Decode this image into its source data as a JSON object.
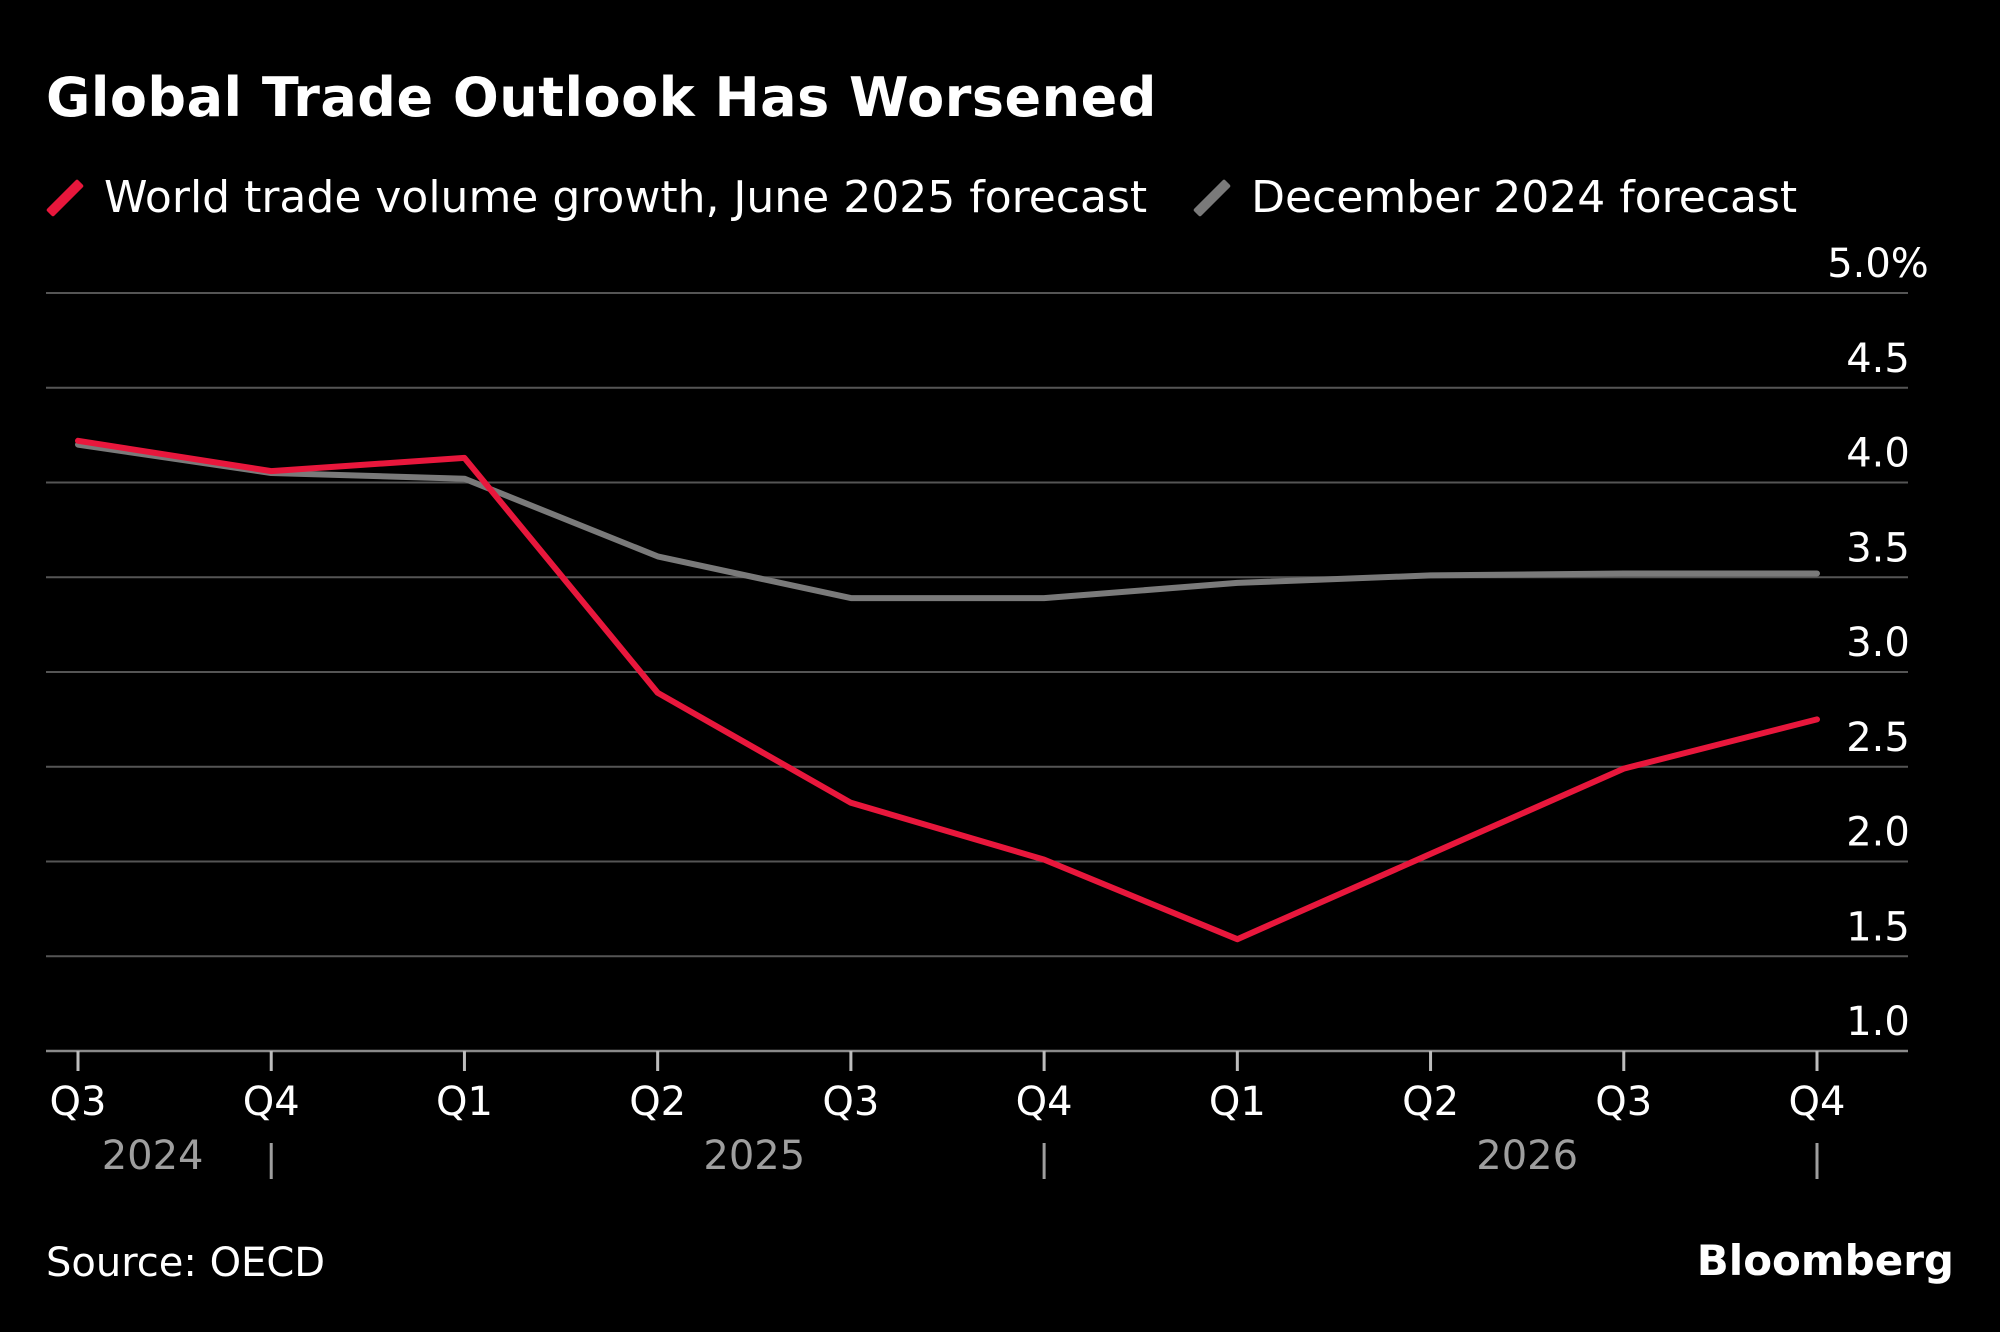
{
  "header": {
    "title": "Global Trade Outlook Has Worsened"
  },
  "legend": {
    "items": [
      {
        "label": "World trade volume growth, June 2025 forecast",
        "color": "#e8173c"
      },
      {
        "label": "December 2024 forecast",
        "color": "#7a7a7a"
      }
    ]
  },
  "chart_data": {
    "type": "line",
    "title": "Global Trade Outlook Has Worsened",
    "xlabel": "",
    "ylabel": "",
    "x": [
      "Q3",
      "Q4",
      "Q1",
      "Q2",
      "Q3",
      "Q4",
      "Q1",
      "Q2",
      "Q3",
      "Q4"
    ],
    "year_groups": [
      {
        "label": "2024",
        "start": 0,
        "end": 1
      },
      {
        "label": "2025",
        "start": 2,
        "end": 5
      },
      {
        "label": "2026",
        "start": 6,
        "end": 9
      }
    ],
    "series": [
      {
        "name": "World trade volume growth, June 2025 forecast",
        "color": "#e8173c",
        "values": [
          4.22,
          4.06,
          4.13,
          2.89,
          2.31,
          2.01,
          1.59,
          2.04,
          2.49,
          2.75
        ]
      },
      {
        "name": "December 2024 forecast",
        "color": "#7a7a7a",
        "values": [
          4.2,
          4.05,
          4.02,
          3.61,
          3.39,
          3.39,
          3.47,
          3.51,
          3.52,
          3.52
        ]
      }
    ],
    "ylim": [
      1.0,
      5.0
    ],
    "yticks": [
      1.0,
      1.5,
      2.0,
      2.5,
      3.0,
      3.5,
      4.0,
      4.5,
      5.0
    ],
    "ytick_labels": [
      "1.0",
      "1.5",
      "2.0",
      "2.5",
      "3.0",
      "3.5",
      "4.0",
      "4.5",
      "5.0%"
    ],
    "grid": true,
    "y_axis_position": "right",
    "legend_position": "top-left"
  },
  "footer": {
    "source": "Source: OECD",
    "brand": "Bloomberg"
  }
}
